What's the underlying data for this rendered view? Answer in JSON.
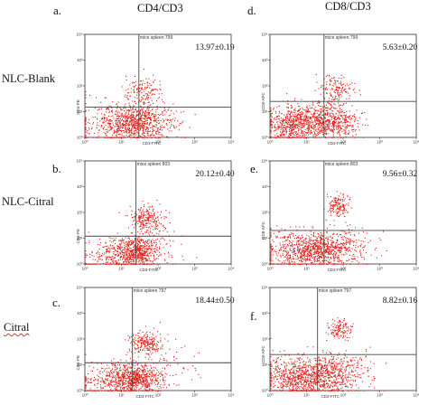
{
  "column_titles": {
    "left": "CD4/CD3",
    "right": "CD8/CD3"
  },
  "row_labels": [
    "NLC-Blank",
    "NLC-Citral",
    "Citral"
  ],
  "colors": {
    "dots": "#e0201a",
    "axes": "#333333",
    "quad_lines": "#444444",
    "text": "#111111"
  },
  "chart_data": [
    {
      "type": "scatter",
      "panel": "a.",
      "header": "mice spleen 799",
      "value_label": "13.97±0.19",
      "xlabel": "CD3-FITC",
      "ylabel": "CD4-PE",
      "xscale": "log",
      "yscale": "log",
      "xlim": [
        1,
        10000
      ],
      "ylim": [
        1,
        10000
      ],
      "xticks": [
        "10⁰",
        "10¹",
        "10²",
        "10³",
        "10⁴"
      ],
      "yticks": [
        "10⁰",
        "10¹",
        "10²",
        "10³",
        "10⁴"
      ],
      "quadrant_gate": {
        "x": 30,
        "y": 15
      },
      "clusters": [
        {
          "x": 25,
          "y": 4,
          "sx": 0.45,
          "sy": 0.35,
          "n": 650
        },
        {
          "x": 40,
          "y": 60,
          "sx": 0.28,
          "sy": 0.28,
          "n": 140
        },
        {
          "x": 6,
          "y": 3,
          "sx": 0.55,
          "sy": 0.45,
          "n": 260
        },
        {
          "x": 80,
          "y": 6,
          "sx": 0.45,
          "sy": 0.4,
          "n": 90
        }
      ]
    },
    {
      "type": "scatter",
      "panel": "b.",
      "header": "mice spleen 803",
      "value_label": "20.12±0.40",
      "xlabel": "CD3-FITC",
      "ylabel": "CD4-PE",
      "xscale": "log",
      "yscale": "log",
      "xlim": [
        1,
        10000
      ],
      "ylim": [
        1,
        10000
      ],
      "xticks": [
        "10⁰",
        "10¹",
        "10²",
        "10³",
        "10⁴"
      ],
      "yticks": [
        "10⁰",
        "10¹",
        "10²",
        "10³",
        "10⁴"
      ],
      "quadrant_gate": {
        "x": 25,
        "y": 12
      },
      "clusters": [
        {
          "x": 22,
          "y": 3,
          "sx": 0.35,
          "sy": 0.3,
          "n": 650
        },
        {
          "x": 45,
          "y": 60,
          "sx": 0.22,
          "sy": 0.25,
          "n": 220
        },
        {
          "x": 5,
          "y": 2,
          "sx": 0.45,
          "sy": 0.35,
          "n": 160
        },
        {
          "x": 100,
          "y": 8,
          "sx": 0.45,
          "sy": 0.5,
          "n": 60
        }
      ]
    },
    {
      "type": "scatter",
      "panel": "c.",
      "header": "mice spleen 797",
      "value_label": "18.44±0.50",
      "xlabel": "CD3-FITC",
      "ylabel": "CD4-PE",
      "xscale": "log",
      "yscale": "log",
      "xlim": [
        1,
        10000
      ],
      "ylim": [
        1,
        10000
      ],
      "xticks": [
        "10⁰",
        "10¹",
        "10²",
        "10³",
        "10⁴"
      ],
      "yticks": [
        "10⁰",
        "10¹",
        "10²",
        "10³",
        "10⁴"
      ],
      "quadrant_gate": {
        "x": 20,
        "y": 12
      },
      "clusters": [
        {
          "x": 20,
          "y": 3,
          "sx": 0.4,
          "sy": 0.3,
          "n": 700
        },
        {
          "x": 50,
          "y": 70,
          "sx": 0.25,
          "sy": 0.25,
          "n": 230
        },
        {
          "x": 4,
          "y": 2,
          "sx": 0.5,
          "sy": 0.35,
          "n": 200
        },
        {
          "x": 120,
          "y": 6,
          "sx": 0.5,
          "sy": 0.5,
          "n": 80
        }
      ]
    },
    {
      "type": "scatter",
      "panel": "d.",
      "header": "mice spleen 799",
      "value_label": "5.63±0.20",
      "xlabel": "CD3-FITC",
      "ylabel": "CD8-APC",
      "xscale": "log",
      "yscale": "log",
      "xlim": [
        1,
        10000
      ],
      "ylim": [
        1,
        10000
      ],
      "xticks": [
        "10⁰",
        "10¹",
        "10²",
        "10³",
        "10⁴"
      ],
      "yticks": [
        "10⁰",
        "10¹",
        "10²",
        "10³",
        "10⁴"
      ],
      "quadrant_gate": {
        "x": 30,
        "y": 25
      },
      "clusters": [
        {
          "x": 8,
          "y": 4,
          "sx": 0.5,
          "sy": 0.35,
          "n": 750
        },
        {
          "x": 60,
          "y": 4,
          "sx": 0.35,
          "sy": 0.3,
          "n": 300
        },
        {
          "x": 60,
          "y": 60,
          "sx": 0.25,
          "sy": 0.35,
          "n": 170
        },
        {
          "x": 3,
          "y": 2,
          "sx": 0.35,
          "sy": 0.3,
          "n": 150
        }
      ]
    },
    {
      "type": "scatter",
      "panel": "e.",
      "header": "mice spleen 803",
      "value_label": "9.56±0.32",
      "xlabel": "CD3-FITC",
      "ylabel": "CD8-APC",
      "xscale": "log",
      "yscale": "log",
      "xlim": [
        1,
        10000
      ],
      "ylim": [
        1,
        10000
      ],
      "xticks": [
        "10⁰",
        "10¹",
        "10²",
        "10³",
        "10⁴"
      ],
      "yticks": [
        "10⁰",
        "10¹",
        "10²",
        "10³",
        "10⁴"
      ],
      "quadrant_gate": {
        "x": 30,
        "y": 20
      },
      "clusters": [
        {
          "x": 20,
          "y": 4,
          "sx": 0.45,
          "sy": 0.35,
          "n": 750
        },
        {
          "x": 70,
          "y": 200,
          "sx": 0.15,
          "sy": 0.22,
          "n": 150
        },
        {
          "x": 3,
          "y": 3,
          "sx": 0.4,
          "sy": 0.4,
          "n": 220
        },
        {
          "x": 120,
          "y": 5,
          "sx": 0.4,
          "sy": 0.4,
          "n": 120
        }
      ]
    },
    {
      "type": "scatter",
      "panel": "f.",
      "header": "mice spleen 797",
      "value_label": "8.82±0.16",
      "xlabel": "CD3-FITC",
      "ylabel": "CD8-APC",
      "xscale": "log",
      "yscale": "log",
      "xlim": [
        1,
        10000
      ],
      "ylim": [
        1,
        10000
      ],
      "xticks": [
        "10⁰",
        "10¹",
        "10²",
        "10³",
        "10⁴"
      ],
      "yticks": [
        "10⁰",
        "10¹",
        "10²",
        "10³",
        "10⁴"
      ],
      "quadrant_gate": {
        "x": 20,
        "y": 25
      },
      "clusters": [
        {
          "x": 15,
          "y": 4,
          "sx": 0.55,
          "sy": 0.4,
          "n": 850
        },
        {
          "x": 80,
          "y": 250,
          "sx": 0.15,
          "sy": 0.2,
          "n": 130
        },
        {
          "x": 3,
          "y": 3,
          "sx": 0.4,
          "sy": 0.4,
          "n": 250
        },
        {
          "x": 150,
          "y": 6,
          "sx": 0.4,
          "sy": 0.4,
          "n": 150
        }
      ]
    }
  ]
}
